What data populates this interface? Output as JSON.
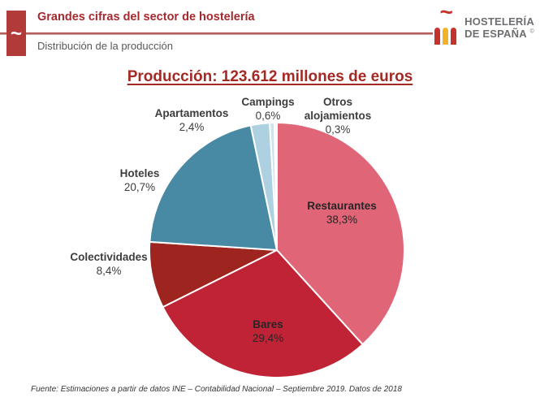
{
  "header": {
    "title": "Grandes cifras del sector de hostelería",
    "subtitle": "Distribución de la producción",
    "corner_mark": "~",
    "brand": {
      "line1": "HOSTELERÍA",
      "line2": "DE ESPAÑA",
      "mark": "©",
      "tilde": "~"
    }
  },
  "chart_data": {
    "type": "pie",
    "title": "Producción: 123.612 millones de euros",
    "total_value": "123.612",
    "total_units": "millones de euros",
    "direction": "clockwise",
    "start_angle_deg": 0,
    "legend_position": "around-slices",
    "slices": [
      {
        "label": "Restaurantes",
        "value_pct": 38.3,
        "display": "38,3%",
        "color": "#e06577",
        "label_placement": "inside"
      },
      {
        "label": "Bares",
        "value_pct": 29.4,
        "display": "29,4%",
        "color": "#c12336",
        "label_placement": "inside"
      },
      {
        "label": "Colectividades",
        "value_pct": 8.4,
        "display": "8,4%",
        "color": "#9e241f",
        "label_placement": "outside"
      },
      {
        "label": "Hoteles",
        "value_pct": 20.7,
        "display": "20,7%",
        "color": "#4889a3",
        "label_placement": "outside"
      },
      {
        "label": "Apartamentos",
        "value_pct": 2.4,
        "display": "2,4%",
        "color": "#add1e1",
        "label_placement": "outside"
      },
      {
        "label": "Campings",
        "value_pct": 0.6,
        "display": "0,6%",
        "color": "#cfe3ed",
        "label_placement": "outside"
      },
      {
        "label": "Otros alojamientos",
        "value_pct": 0.3,
        "display": "0,3%",
        "color": "#edf4f8",
        "label_placement": "outside"
      }
    ]
  },
  "footer": {
    "source": "Fuente: Estimaciones a partir de datos INE – Contabilidad Nacional – Septiembre 2019. Datos de 2018"
  },
  "colors": {
    "header_accent": "#b23a38",
    "title_red": "#a32a24",
    "brand_gray": "#6d6e71",
    "brand_yellow": "#f0b32a",
    "brand_red": "#c5332d"
  }
}
